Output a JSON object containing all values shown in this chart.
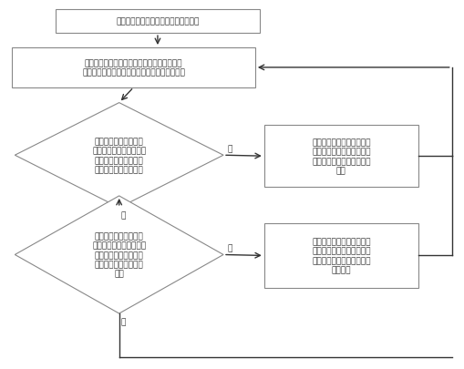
{
  "title": "液压油通过泵循环因此冷却器又换热量",
  "box2_line1": "液压油箱内液压油的实际温度，经此通至示具",
  "box2_line2": "反量传导并且自动温度控制向上坐控制处插单元",
  "diamond1_text": "控制处理单元根据统化\n传导的温度信号所发起的\n力与设定的温度弹簧力\n值比较是否大于设定值",
  "box_right1_line1": "控制处理单元盘黄压缩克服",
  "box_right1_line2": "设定弹簧力上移，用力弹簧",
  "box_right1_line3": "作用下阀芯关闭，冷却水枝",
  "box_right1_line4": "精好",
  "diamond2_text": "控制处理单元根据换化\n传导的温度信号所获悉的\n力与设定的温度弹簧力\n值比较是否小于等于设\n定值",
  "box_right2_line1": "控制处理单元盘黄压缩克服",
  "box_right2_line2": "设定弹簧力下移，易杆克服",
  "box_right2_line3": "向位弹簧作用下打开，冷却",
  "box_right2_line4": "水枝打开",
  "yes_label": "是",
  "no_label": "否",
  "bg_color": "#ffffff",
  "box_facecolor": "#ffffff",
  "box_edgecolor": "#888888",
  "arrow_color": "#333333",
  "text_color": "#333333",
  "fontsize": 6.5,
  "border_color": "#999999"
}
